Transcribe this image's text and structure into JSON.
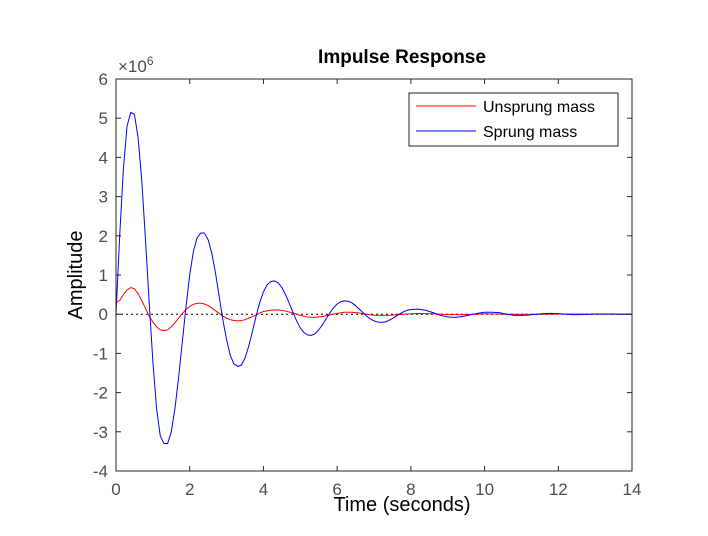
{
  "chart_data": {
    "type": "line",
    "title": "Impulse Response",
    "xlabel": "Time (seconds)",
    "ylabel": "Amplitude",
    "y_multiplier": "×10",
    "y_multiplier_exponent": "6",
    "xlim": [
      0,
      14
    ],
    "ylim": [
      -4,
      6
    ],
    "x_ticks": [
      "0",
      "2",
      "4",
      "6",
      "8",
      "10",
      "12",
      "14"
    ],
    "y_ticks": [
      "-4",
      "-3",
      "-2",
      "-1",
      "0",
      "1",
      "2",
      "3",
      "4",
      "5",
      "6"
    ],
    "grid": false,
    "legend_position": "top-right",
    "colors": {
      "unsprung": "#ff0000",
      "sprung": "#0000ff",
      "zero_line": "#000000",
      "axis": "#262626"
    },
    "series": [
      {
        "name": "Unsprung mass",
        "color": "#ff0000",
        "points": [
          [
            0,
            0.3
          ],
          [
            0.1,
            0.35
          ],
          [
            0.2,
            0.5
          ],
          [
            0.3,
            0.62
          ],
          [
            0.4,
            0.68
          ],
          [
            0.5,
            0.65
          ],
          [
            0.6,
            0.52
          ],
          [
            0.7,
            0.35
          ],
          [
            0.8,
            0.15
          ],
          [
            0.9,
            -0.05
          ],
          [
            1.0,
            -0.2
          ],
          [
            1.1,
            -0.32
          ],
          [
            1.2,
            -0.4
          ],
          [
            1.3,
            -0.42
          ],
          [
            1.4,
            -0.4
          ],
          [
            1.5,
            -0.32
          ],
          [
            1.6,
            -0.22
          ],
          [
            1.7,
            -0.1
          ],
          [
            1.8,
            0.02
          ],
          [
            1.9,
            0.12
          ],
          [
            2.0,
            0.2
          ],
          [
            2.1,
            0.25
          ],
          [
            2.2,
            0.28
          ],
          [
            2.3,
            0.28
          ],
          [
            2.4,
            0.26
          ],
          [
            2.5,
            0.22
          ],
          [
            2.6,
            0.16
          ],
          [
            2.7,
            0.09
          ],
          [
            2.8,
            0.02
          ],
          [
            2.9,
            -0.05
          ],
          [
            3.0,
            -0.1
          ],
          [
            3.1,
            -0.14
          ],
          [
            3.2,
            -0.16
          ],
          [
            3.3,
            -0.17
          ],
          [
            3.4,
            -0.16
          ],
          [
            3.5,
            -0.14
          ],
          [
            3.6,
            -0.1
          ],
          [
            3.7,
            -0.06
          ],
          [
            3.8,
            -0.02
          ],
          [
            3.9,
            0.03
          ],
          [
            4.0,
            0.07
          ],
          [
            4.2,
            0.1
          ],
          [
            4.4,
            0.11
          ],
          [
            4.6,
            0.08
          ],
          [
            4.8,
            0.03
          ],
          [
            5.0,
            -0.03
          ],
          [
            5.2,
            -0.07
          ],
          [
            5.4,
            -0.08
          ],
          [
            5.6,
            -0.06
          ],
          [
            5.8,
            -0.02
          ],
          [
            6.0,
            0.02
          ],
          [
            6.2,
            0.05
          ],
          [
            6.4,
            0.05
          ],
          [
            6.6,
            0.03
          ],
          [
            6.8,
            0.0
          ],
          [
            7.0,
            -0.03
          ],
          [
            7.4,
            -0.03
          ],
          [
            7.8,
            0.0
          ],
          [
            8.2,
            0.02
          ],
          [
            8.6,
            0.01
          ],
          [
            9.0,
            -0.01
          ],
          [
            9.4,
            -0.01
          ],
          [
            10.0,
            0.01
          ],
          [
            10.6,
            0.0
          ],
          [
            11.2,
            -0.005
          ],
          [
            12.0,
            0.005
          ],
          [
            13.0,
            0.0
          ],
          [
            14.0,
            0.0
          ]
        ]
      },
      {
        "name": "Sprung mass",
        "color": "#0000ff",
        "points": [
          [
            0,
            0.0
          ],
          [
            0.1,
            2.0
          ],
          [
            0.2,
            3.7
          ],
          [
            0.3,
            4.8
          ],
          [
            0.4,
            5.15
          ],
          [
            0.5,
            5.1
          ],
          [
            0.6,
            4.5
          ],
          [
            0.7,
            3.4
          ],
          [
            0.8,
            1.9
          ],
          [
            0.9,
            0.3
          ],
          [
            1.0,
            -1.2
          ],
          [
            1.1,
            -2.4
          ],
          [
            1.2,
            -3.1
          ],
          [
            1.3,
            -3.3
          ],
          [
            1.4,
            -3.3
          ],
          [
            1.5,
            -3.0
          ],
          [
            1.6,
            -2.4
          ],
          [
            1.7,
            -1.6
          ],
          [
            1.8,
            -0.7
          ],
          [
            1.9,
            0.2
          ],
          [
            2.0,
            1.0
          ],
          [
            2.1,
            1.6
          ],
          [
            2.2,
            1.95
          ],
          [
            2.3,
            2.07
          ],
          [
            2.4,
            2.07
          ],
          [
            2.5,
            1.9
          ],
          [
            2.6,
            1.55
          ],
          [
            2.7,
            1.05
          ],
          [
            2.8,
            0.45
          ],
          [
            2.9,
            -0.15
          ],
          [
            3.0,
            -0.65
          ],
          [
            3.1,
            -1.05
          ],
          [
            3.2,
            -1.27
          ],
          [
            3.3,
            -1.33
          ],
          [
            3.4,
            -1.3
          ],
          [
            3.5,
            -1.12
          ],
          [
            3.6,
            -0.82
          ],
          [
            3.7,
            -0.45
          ],
          [
            3.8,
            -0.05
          ],
          [
            3.9,
            0.3
          ],
          [
            4.0,
            0.57
          ],
          [
            4.1,
            0.75
          ],
          [
            4.2,
            0.83
          ],
          [
            4.3,
            0.85
          ],
          [
            4.4,
            0.8
          ],
          [
            4.5,
            0.68
          ],
          [
            4.6,
            0.5
          ],
          [
            4.7,
            0.28
          ],
          [
            4.8,
            0.05
          ],
          [
            4.9,
            -0.17
          ],
          [
            5.0,
            -0.35
          ],
          [
            5.1,
            -0.47
          ],
          [
            5.2,
            -0.53
          ],
          [
            5.3,
            -0.54
          ],
          [
            5.4,
            -0.5
          ],
          [
            5.5,
            -0.4
          ],
          [
            5.6,
            -0.27
          ],
          [
            5.7,
            -0.12
          ],
          [
            5.8,
            0.03
          ],
          [
            5.9,
            0.16
          ],
          [
            6.0,
            0.26
          ],
          [
            6.1,
            0.32
          ],
          [
            6.2,
            0.34
          ],
          [
            6.3,
            0.33
          ],
          [
            6.4,
            0.29
          ],
          [
            6.5,
            0.22
          ],
          [
            6.6,
            0.13
          ],
          [
            6.7,
            0.04
          ],
          [
            6.8,
            -0.05
          ],
          [
            6.9,
            -0.12
          ],
          [
            7.0,
            -0.17
          ],
          [
            7.1,
            -0.2
          ],
          [
            7.2,
            -0.21
          ],
          [
            7.3,
            -0.2
          ],
          [
            7.4,
            -0.16
          ],
          [
            7.5,
            -0.11
          ],
          [
            7.6,
            -0.05
          ],
          [
            7.7,
            0.01
          ],
          [
            7.8,
            0.06
          ],
          [
            7.9,
            0.1
          ],
          [
            8.0,
            0.12
          ],
          [
            8.2,
            0.13
          ],
          [
            8.4,
            0.1
          ],
          [
            8.6,
            0.04
          ],
          [
            8.8,
            -0.03
          ],
          [
            9.0,
            -0.07
          ],
          [
            9.2,
            -0.08
          ],
          [
            9.4,
            -0.06
          ],
          [
            9.6,
            -0.02
          ],
          [
            9.8,
            0.02
          ],
          [
            10.0,
            0.05
          ],
          [
            10.2,
            0.05
          ],
          [
            10.4,
            0.04
          ],
          [
            10.6,
            0.0
          ],
          [
            10.8,
            -0.03
          ],
          [
            11.0,
            -0.03
          ],
          [
            11.2,
            -0.02
          ],
          [
            11.4,
            0.0
          ],
          [
            11.6,
            0.015
          ],
          [
            11.8,
            0.02
          ],
          [
            12.0,
            0.015
          ],
          [
            12.2,
            0.0
          ],
          [
            12.4,
            -0.01
          ],
          [
            12.6,
            -0.01
          ],
          [
            12.8,
            0.0
          ],
          [
            13.0,
            0.005
          ],
          [
            13.4,
            0.005
          ],
          [
            13.8,
            0.0
          ],
          [
            14.0,
            0.0
          ]
        ]
      }
    ]
  }
}
